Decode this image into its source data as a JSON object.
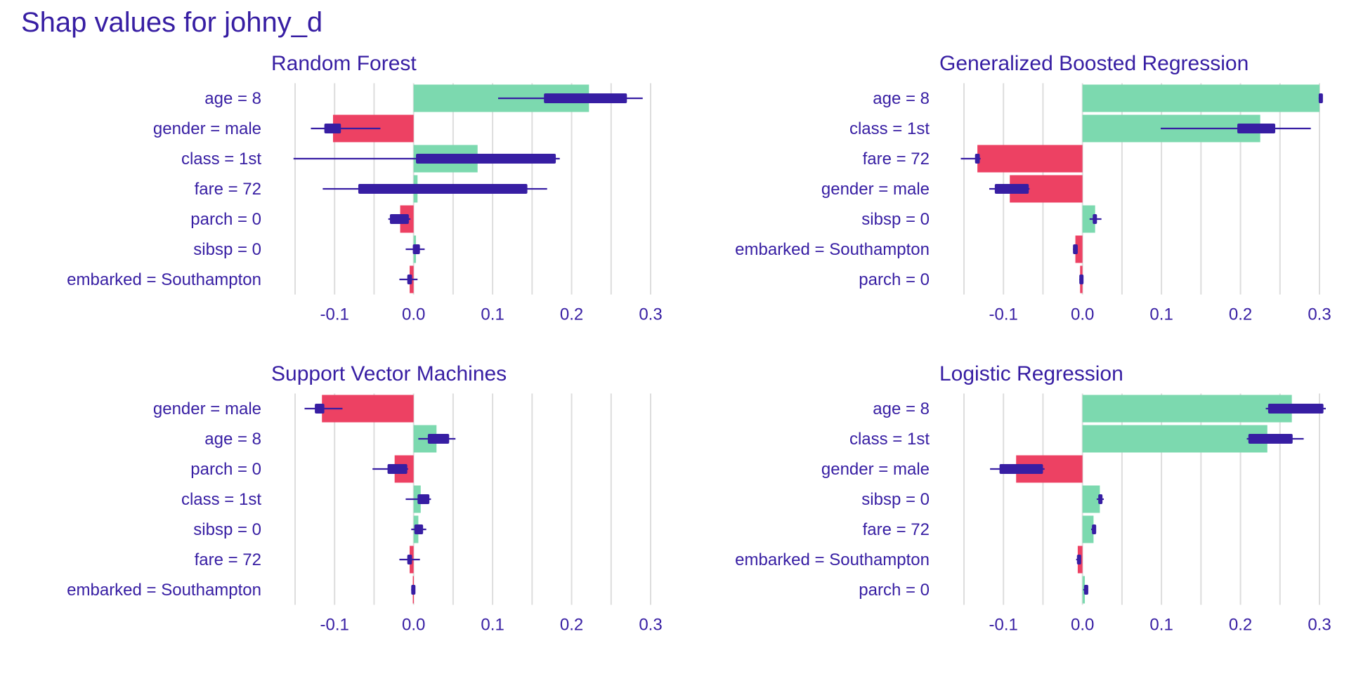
{
  "title": "Shap values for johny_d",
  "colors": {
    "text": "#371ea3",
    "positive": "#7cd9af",
    "negative": "#ed4163",
    "boxplot": "#371ea3",
    "grid": "#dddddd"
  },
  "chart_data": [
    {
      "type": "bar",
      "title": "Random Forest",
      "xlim": [
        -0.15,
        0.3
      ],
      "xticks": [
        -0.1,
        0.0,
        0.1,
        0.2,
        0.3
      ],
      "xtick_labels": [
        "-0.1",
        "0.0",
        "0.1",
        "0.2",
        "0.3"
      ],
      "grid": true,
      "categories": [
        "age = 8",
        "gender = male",
        "class = 1st",
        "fare = 72",
        "parch = 0",
        "sibsp = 0",
        "embarked = Southampton"
      ],
      "values": [
        0.222,
        -0.102,
        0.081,
        0.005,
        -0.017,
        0.003,
        -0.005
      ],
      "boxplots": [
        {
          "min": 0.107,
          "q1": 0.165,
          "q3": 0.27,
          "max": 0.29
        },
        {
          "min": -0.13,
          "q1": -0.113,
          "q3": -0.092,
          "max": -0.042
        },
        {
          "min": -0.152,
          "q1": 0.003,
          "q3": 0.18,
          "max": 0.185
        },
        {
          "min": -0.115,
          "q1": -0.07,
          "q3": 0.144,
          "max": 0.169
        },
        {
          "min": -0.032,
          "q1": -0.03,
          "q3": -0.006,
          "max": -0.004
        },
        {
          "min": -0.01,
          "q1": -0.001,
          "q3": 0.008,
          "max": 0.014
        },
        {
          "min": -0.018,
          "q1": -0.008,
          "q3": -0.002,
          "max": 0.005
        }
      ]
    },
    {
      "type": "bar",
      "title": "Generalized Boosted Regression",
      "xlim": [
        -0.15,
        0.3
      ],
      "xticks": [
        -0.1,
        0.0,
        0.1,
        0.2,
        0.3
      ],
      "xtick_labels": [
        "-0.1",
        "0.0",
        "0.1",
        "0.2",
        "0.3"
      ],
      "grid": true,
      "categories": [
        "age = 8",
        "class = 1st",
        "fare = 72",
        "gender = male",
        "sibsp = 0",
        "embarked = Southampton",
        "parch = 0"
      ],
      "values": [
        0.3,
        0.225,
        -0.133,
        -0.092,
        0.016,
        -0.009,
        -0.003
      ],
      "boxplots": [
        {
          "min": 0.299,
          "q1": 0.299,
          "q3": 0.301,
          "max": 0.301
        },
        {
          "min": 0.099,
          "q1": 0.196,
          "q3": 0.244,
          "max": 0.289
        },
        {
          "min": -0.154,
          "q1": -0.136,
          "q3": -0.13,
          "max": -0.129
        },
        {
          "min": -0.118,
          "q1": -0.111,
          "q3": -0.068,
          "max": -0.067
        },
        {
          "min": 0.009,
          "q1": 0.013,
          "q3": 0.018,
          "max": 0.024
        },
        {
          "min": -0.012,
          "q1": -0.012,
          "q3": -0.006,
          "max": -0.006
        },
        {
          "min": -0.004,
          "q1": -0.004,
          "q3": -0.001,
          "max": -0.001
        }
      ]
    },
    {
      "type": "bar",
      "title": "Support Vector Machines",
      "xlim": [
        -0.15,
        0.3
      ],
      "xticks": [
        -0.1,
        0.0,
        0.1,
        0.2,
        0.3
      ],
      "xtick_labels": [
        "-0.1",
        "0.0",
        "0.1",
        "0.2",
        "0.3"
      ],
      "grid": true,
      "categories": [
        "gender = male",
        "age = 8",
        "parch = 0",
        "class = 1st",
        "sibsp = 0",
        "fare = 72",
        "embarked = Southampton"
      ],
      "values": [
        -0.116,
        0.029,
        -0.024,
        0.009,
        0.006,
        -0.005,
        -0.001
      ],
      "boxplots": [
        {
          "min": -0.138,
          "q1": -0.125,
          "q3": -0.113,
          "max": -0.09
        },
        {
          "min": 0.006,
          "q1": 0.018,
          "q3": 0.045,
          "max": 0.053
        },
        {
          "min": -0.052,
          "q1": -0.033,
          "q3": -0.008,
          "max": -0.007
        },
        {
          "min": -0.01,
          "q1": 0.005,
          "q3": 0.02,
          "max": 0.022
        },
        {
          "min": -0.003,
          "q1": 0.001,
          "q3": 0.012,
          "max": 0.016
        },
        {
          "min": -0.018,
          "q1": -0.008,
          "q3": -0.002,
          "max": 0.008
        },
        {
          "min": -0.003,
          "q1": -0.003,
          "q3": 0.001,
          "max": 0.001
        }
      ]
    },
    {
      "type": "bar",
      "title": "Logistic Regression",
      "xlim": [
        -0.15,
        0.3
      ],
      "xticks": [
        -0.1,
        0.0,
        0.1,
        0.2,
        0.3
      ],
      "xtick_labels": [
        "-0.1",
        "0.0",
        "0.1",
        "0.2",
        "0.3"
      ],
      "grid": true,
      "categories": [
        "age = 8",
        "class = 1st",
        "gender = male",
        "sibsp = 0",
        "fare = 72",
        "embarked = Southampton",
        "parch = 0"
      ],
      "values": [
        0.265,
        0.234,
        -0.084,
        0.022,
        0.014,
        -0.006,
        0.003
      ],
      "boxplots": [
        {
          "min": 0.232,
          "q1": 0.235,
          "q3": 0.305,
          "max": 0.308
        },
        {
          "min": 0.208,
          "q1": 0.21,
          "q3": 0.266,
          "max": 0.28
        },
        {
          "min": -0.117,
          "q1": -0.105,
          "q3": -0.05,
          "max": -0.048
        },
        {
          "min": 0.018,
          "q1": 0.02,
          "q3": 0.024,
          "max": 0.027
        },
        {
          "min": 0.011,
          "q1": 0.012,
          "q3": 0.015,
          "max": 0.016
        },
        {
          "min": -0.008,
          "q1": -0.007,
          "q3": -0.004,
          "max": -0.004
        },
        {
          "min": 0.001,
          "q1": 0.002,
          "q3": 0.005,
          "max": 0.005
        }
      ]
    }
  ]
}
